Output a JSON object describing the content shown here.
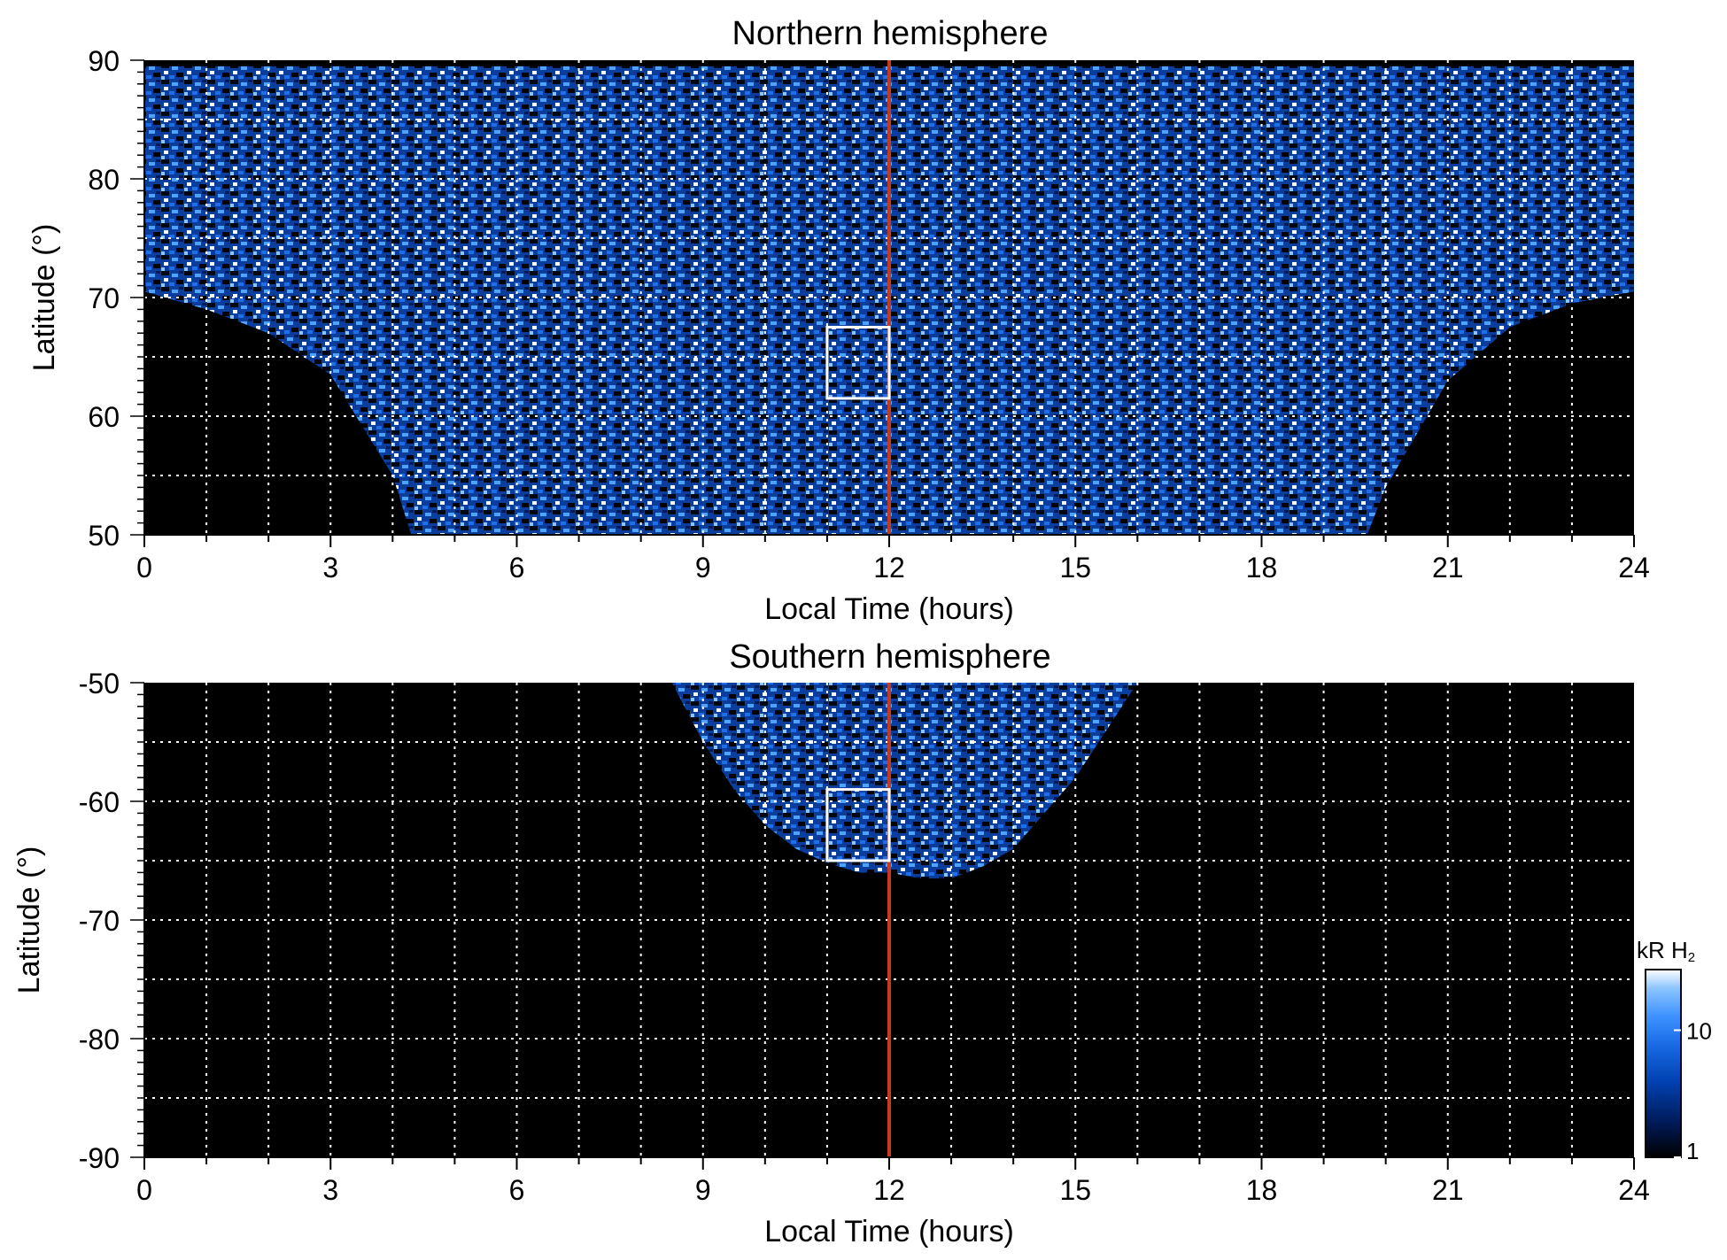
{
  "chart_data": [
    {
      "type": "heatmap",
      "title": "Northern hemisphere",
      "xlabel": "Local Time (hours)",
      "ylabel": "Latitude (°)",
      "xlim": [
        0,
        24
      ],
      "ylim": [
        50,
        90
      ],
      "x_ticks": [
        0,
        3,
        6,
        9,
        12,
        15,
        18,
        21,
        24
      ],
      "y_ticks": [
        50,
        60,
        70,
        80,
        90
      ],
      "grid": true,
      "grid_x_step": 1,
      "grid_y_step": 5,
      "noon_line_x": 12,
      "noon_line_color": "#c8381c",
      "box": {
        "x0": 11,
        "x1": 12,
        "y0": 61.5,
        "y1": 67.5
      },
      "coverage_edge": [
        [
          0,
          70.5
        ],
        [
          1,
          69
        ],
        [
          2,
          67
        ],
        [
          3,
          63.5
        ],
        [
          4,
          55
        ],
        [
          4.3,
          50
        ],
        [
          19.7,
          50
        ],
        [
          20,
          54
        ],
        [
          21,
          63
        ],
        [
          22,
          67.5
        ],
        [
          23,
          69.5
        ],
        [
          24,
          70.5
        ]
      ],
      "coverage_top_lat": 89.5
    },
    {
      "type": "heatmap",
      "title": "Southern hemisphere",
      "xlabel": "Local Time (hours)",
      "ylabel": "Latitude (°)",
      "xlim": [
        0,
        24
      ],
      "ylim": [
        -90,
        -50
      ],
      "x_ticks": [
        0,
        3,
        6,
        9,
        12,
        15,
        18,
        21,
        24
      ],
      "y_ticks": [
        -50,
        -60,
        -70,
        -80,
        -90
      ],
      "grid": true,
      "grid_x_step": 1,
      "grid_y_step": 5,
      "noon_line_x": 12,
      "noon_line_color": "#c8381c",
      "box": {
        "x0": 11,
        "x1": 12,
        "y0": -65,
        "y1": -59
      },
      "coverage_edge": [
        [
          8.5,
          -50
        ],
        [
          9,
          -55
        ],
        [
          9.5,
          -59
        ],
        [
          10,
          -62
        ],
        [
          10.5,
          -64
        ],
        [
          11,
          -65.2
        ],
        [
          11.5,
          -66
        ],
        [
          12,
          -66
        ],
        [
          12.5,
          -66.5
        ],
        [
          13,
          -66.5
        ],
        [
          13.5,
          -65.5
        ],
        [
          14,
          -64
        ],
        [
          14.5,
          -61
        ],
        [
          15,
          -58
        ],
        [
          15.5,
          -54
        ],
        [
          16,
          -50
        ]
      ]
    }
  ],
  "colorbar": {
    "title": "kR H",
    "title_subscript": "2",
    "ticks": [
      {
        "value": 10,
        "label": "10"
      },
      {
        "value": 1,
        "label": "1"
      }
    ],
    "scale": "log",
    "range": [
      1,
      30
    ],
    "colors": [
      "#000000",
      "#001a55",
      "#0040b0",
      "#1a6be6",
      "#3d92ff",
      "#8cc4ff",
      "#ffffff"
    ]
  }
}
